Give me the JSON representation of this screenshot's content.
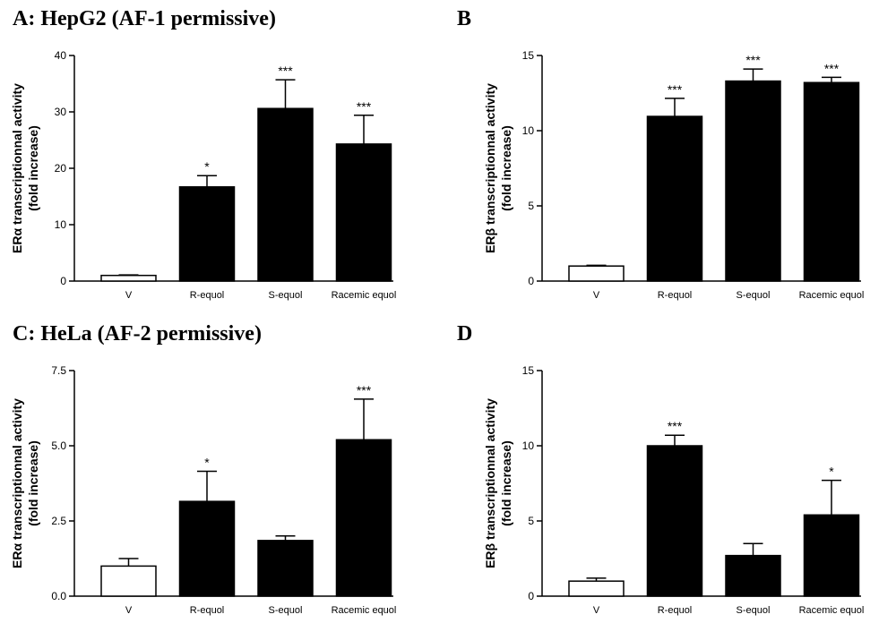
{
  "chart_data": [
    {
      "type": "bar",
      "title": "A: HepG2 (AF-1 permissive)",
      "ylabel_line1": "ERα transcriptionnal activity",
      "ylabel_line2": "(fold increase)",
      "categories": [
        "V",
        "R-equol",
        "S-equol",
        "Racemic equol"
      ],
      "values": [
        1.0,
        16.7,
        30.6,
        24.3
      ],
      "errors": [
        0.1,
        2.0,
        5.1,
        5.1
      ],
      "significance": [
        "",
        "*",
        "***",
        "***"
      ],
      "fills": [
        "#ffffff",
        "#000000",
        "#000000",
        "#000000"
      ],
      "ylim": [
        0,
        40
      ],
      "yticks": [
        0,
        10,
        20,
        30,
        40
      ],
      "ytick_labels": [
        "0",
        "10",
        "20",
        "30",
        "40"
      ]
    },
    {
      "type": "bar",
      "title": "B",
      "ylabel_line1": "ERβ transcriptionnal activity",
      "ylabel_line2": "(fold increase)",
      "categories": [
        "V",
        "R-equol",
        "S-equol",
        "Racemic equol"
      ],
      "values": [
        1.0,
        10.95,
        13.3,
        13.2
      ],
      "errors": [
        0.05,
        1.2,
        0.8,
        0.35
      ],
      "significance": [
        "",
        "***",
        "***",
        "***"
      ],
      "fills": [
        "#ffffff",
        "#000000",
        "#000000",
        "#000000"
      ],
      "ylim": [
        0,
        15
      ],
      "yticks": [
        0,
        5,
        10,
        15
      ],
      "ytick_labels": [
        "0",
        "5",
        "10",
        "15"
      ]
    },
    {
      "type": "bar",
      "title": "C: HeLa (AF-2 permissive)",
      "ylabel_line1": "ERα transcriptionnal activity",
      "ylabel_line2": "(fold increase)",
      "categories": [
        "V",
        "R-equol",
        "S-equol",
        "Racemic equol"
      ],
      "values": [
        1.0,
        3.15,
        1.85,
        5.2
      ],
      "errors": [
        0.25,
        1.0,
        0.15,
        1.35
      ],
      "significance": [
        "",
        "*",
        "",
        "***"
      ],
      "fills": [
        "#ffffff",
        "#000000",
        "#000000",
        "#000000"
      ],
      "ylim": [
        0,
        7.5
      ],
      "yticks": [
        0,
        2.5,
        5.0,
        7.5
      ],
      "ytick_labels": [
        "0.0",
        "2.5",
        "5.0",
        "7.5"
      ]
    },
    {
      "type": "bar",
      "title": "D",
      "ylabel_line1": "ERβ transcriptionnal activity",
      "ylabel_line2": "(fold increase)",
      "categories": [
        "V",
        "R-equol",
        "S-equol",
        "Racemic equol"
      ],
      "values": [
        1.0,
        10.0,
        2.7,
        5.4
      ],
      "errors": [
        0.2,
        0.7,
        0.8,
        2.3
      ],
      "significance": [
        "",
        "***",
        "",
        "*"
      ],
      "fills": [
        "#ffffff",
        "#000000",
        "#000000",
        "#000000"
      ],
      "ylim": [
        0,
        15
      ],
      "yticks": [
        0,
        5,
        10,
        15
      ],
      "ytick_labels": [
        "0",
        "5",
        "10",
        "15"
      ]
    }
  ]
}
